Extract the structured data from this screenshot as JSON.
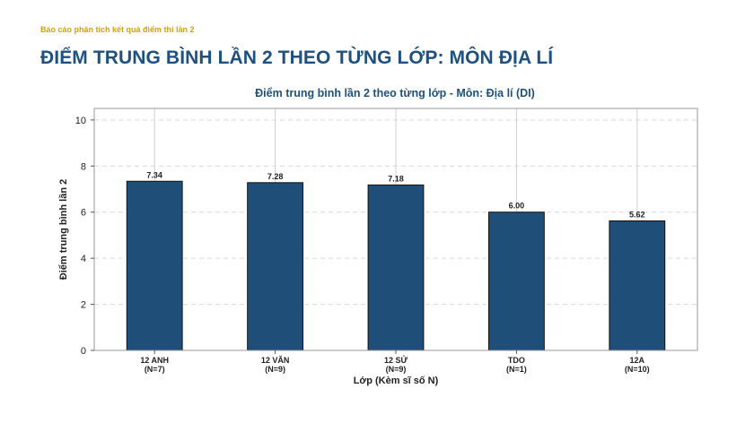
{
  "header": {
    "kicker": "Báo cáo phân tích kết quả điểm thi lần 2",
    "title": "ĐIỂM TRUNG BÌNH LẦN 2 THEO TỪNG LỚP: MÔN ĐỊA LÍ"
  },
  "chart_data": {
    "type": "bar",
    "title": "Điểm trung bình lần 2 theo từng lớp - Môn: Địa lí (DI)",
    "xlabel": "Lớp (Kèm sĩ số N)",
    "ylabel": "Điểm trung bình lần 2",
    "ylim": [
      0,
      10.5
    ],
    "yticks": [
      0,
      2,
      4,
      6,
      8,
      10
    ],
    "grid": true,
    "bar_color": "#1f4e79",
    "categories": [
      "12 ANH",
      "12 VĂN",
      "12 SỬ",
      "TDO",
      "12A"
    ],
    "category_counts": [
      "(N=7)",
      "(N=9)",
      "(N=9)",
      "(N=1)",
      "(N=10)"
    ],
    "values": [
      7.34,
      7.28,
      7.18,
      6.0,
      5.62
    ],
    "value_labels": [
      "7.34",
      "7.28",
      "7.18",
      "6.00",
      "5.62"
    ]
  }
}
